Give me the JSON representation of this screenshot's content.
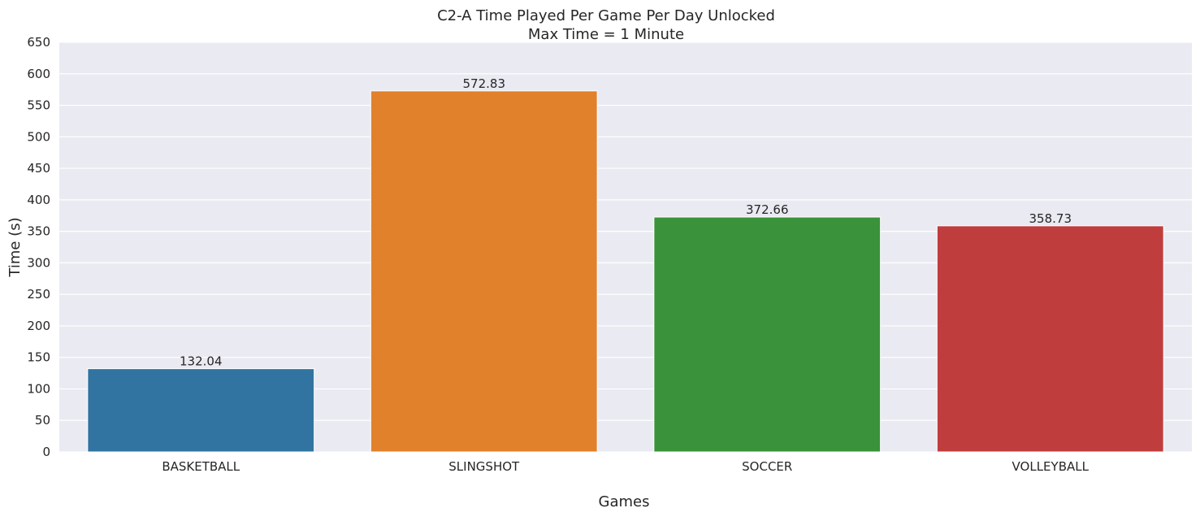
{
  "chart_data": {
    "type": "bar",
    "title": "C2-A Time Played Per Game Per Day Unlocked",
    "subtitle": "Max Time = 1 Minute",
    "xlabel": "Games",
    "ylabel": "Time (s)",
    "categories": [
      "BASKETBALL",
      "SLINGSHOT",
      "SOCCER",
      "VOLLEYBALL"
    ],
    "values": [
      132.04,
      572.83,
      372.66,
      358.73
    ],
    "value_labels": [
      "132.04",
      "572.83",
      "372.66",
      "358.73"
    ],
    "colors": [
      "#3274a1",
      "#e1812c",
      "#3a923a",
      "#c03d3e"
    ],
    "ylim": [
      0,
      650
    ],
    "yticks": [
      0,
      50,
      100,
      150,
      200,
      250,
      300,
      350,
      400,
      450,
      500,
      550,
      600,
      650
    ],
    "grid": true,
    "background_color": "#eaeaf2",
    "legend": "none"
  }
}
